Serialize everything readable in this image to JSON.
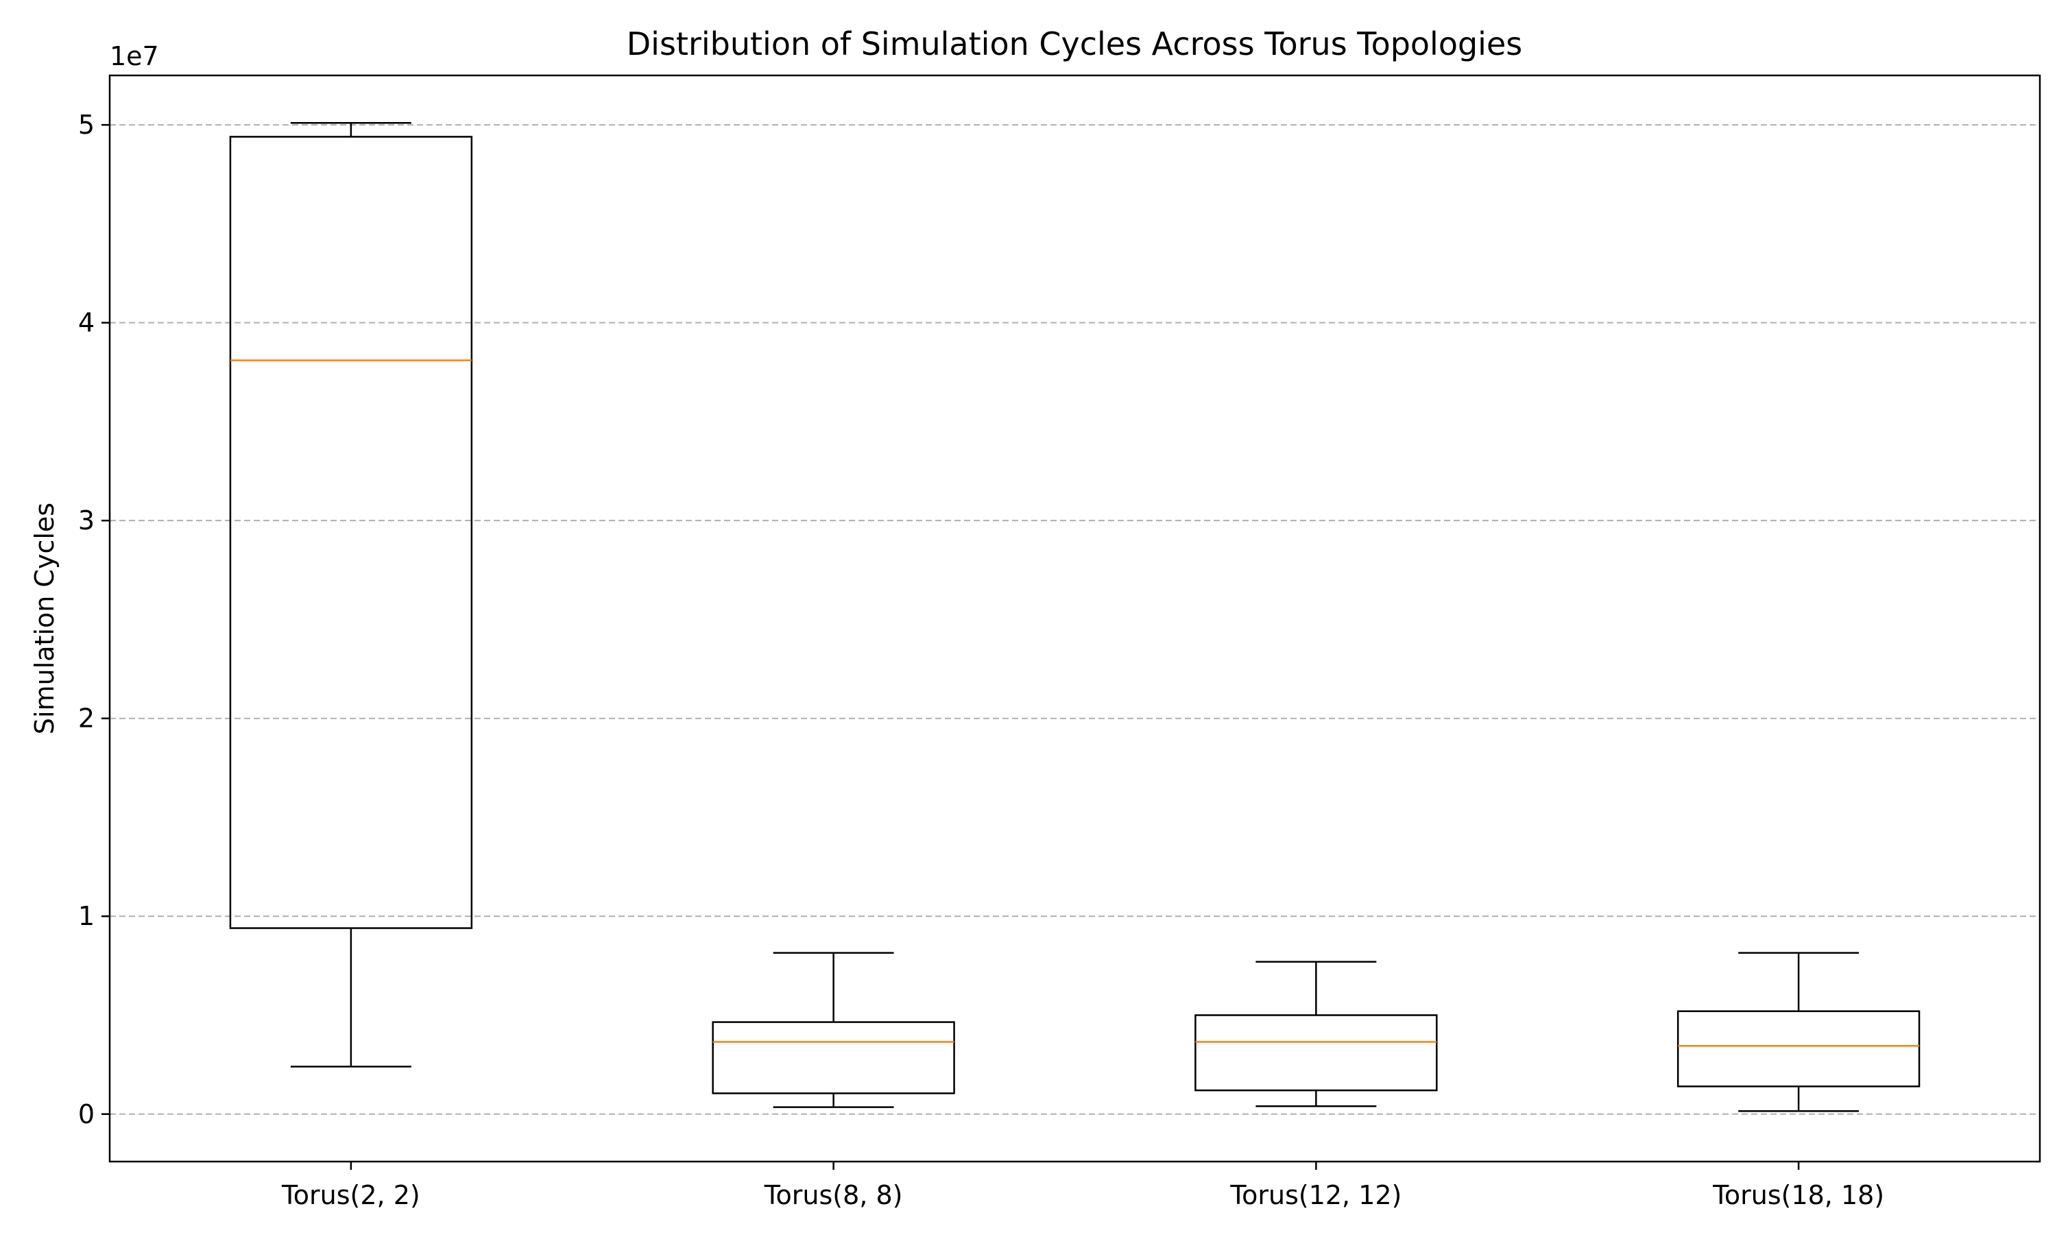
{
  "chart_data": {
    "type": "boxplot",
    "title": "Distribution of Simulation Cycles Across Torus Topologies",
    "xlabel": "",
    "ylabel": "Simulation Cycles",
    "y_offset_label": "1e7",
    "y_scale": 10000000,
    "ylim": [
      -2400000,
      52500000
    ],
    "yticks": [
      0,
      10000000,
      20000000,
      30000000,
      40000000,
      50000000
    ],
    "ytick_labels": [
      "0",
      "1",
      "2",
      "3",
      "4",
      "5"
    ],
    "grid": "y-dashed",
    "categories": [
      "Torus(2, 2)",
      "Torus(8, 8)",
      "Torus(12, 12)",
      "Torus(18, 18)"
    ],
    "boxes": [
      {
        "category": "Torus(2, 2)",
        "whisker_low": 2400000,
        "q1": 9400000,
        "median": 38100000,
        "q3": 49400000,
        "whisker_high": 50100000
      },
      {
        "category": "Torus(8, 8)",
        "whisker_low": 350000,
        "q1": 1050000,
        "median": 3650000,
        "q3": 4650000,
        "whisker_high": 8150000
      },
      {
        "category": "Torus(12, 12)",
        "whisker_low": 400000,
        "q1": 1200000,
        "median": 3650000,
        "q3": 5000000,
        "whisker_high": 7700000
      },
      {
        "category": "Torus(18, 18)",
        "whisker_low": 150000,
        "q1": 1400000,
        "median": 3450000,
        "q3": 5200000,
        "whisker_high": 8150000
      }
    ],
    "colors": {
      "box": "#000000",
      "median": "#ff7f0e",
      "grid": "#b0b0b0"
    }
  }
}
